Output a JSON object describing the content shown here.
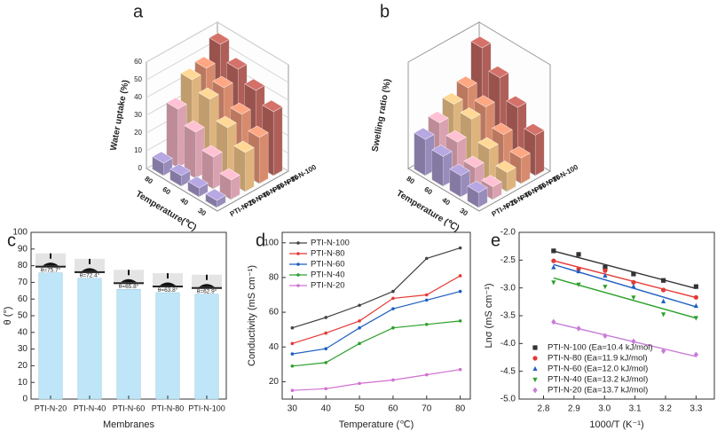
{
  "chart_data": [
    {
      "type": "bar3d",
      "panel": "a",
      "ylabel": "Water uptake (%)",
      "xlabel": "Temperature(℃)",
      "categories": [
        "30",
        "40",
        "60",
        "80"
      ],
      "ylim": [
        0,
        60
      ],
      "yticks": [
        0,
        10,
        20,
        30,
        40,
        50,
        60
      ],
      "grid": true,
      "series": [
        {
          "name": "PTI-N-20",
          "color": "#a99bd1",
          "values": [
            4,
            5,
            6,
            7
          ]
        },
        {
          "name": "PTI-N-40",
          "color": "#f2b3c3",
          "values": [
            11,
            18,
            26,
            33
          ]
        },
        {
          "name": "PTI-N-60",
          "color": "#f8c88a",
          "values": [
            22,
            30,
            40,
            45
          ]
        },
        {
          "name": "PTI-N-80",
          "color": "#f09a78",
          "values": [
            26,
            33,
            42,
            47
          ]
        },
        {
          "name": "PTI-N-100",
          "color": "#c46a62",
          "values": [
            36,
            42,
            48,
            56
          ]
        }
      ]
    },
    {
      "type": "bar3d",
      "panel": "b",
      "ylabel": "Swelling ratio (%)",
      "xlabel": "Temperature (℃)",
      "categories": [
        "30",
        "40",
        "60",
        "80"
      ],
      "ylim": [
        0,
        50
      ],
      "series": [
        {
          "name": "PTI-N-20",
          "color": "#a99bd1",
          "values": [
            7,
            10,
            14,
            17
          ]
        },
        {
          "name": "PTI-N-40",
          "color": "#f2b3c3",
          "values": [
            6,
            10,
            17,
            21
          ]
        },
        {
          "name": "PTI-N-60",
          "color": "#f8c88a",
          "values": [
            9,
            15,
            24,
            26
          ]
        },
        {
          "name": "PTI-N-80",
          "color": "#f09a78",
          "values": [
            12,
            18,
            26,
            30
          ]
        },
        {
          "name": "PTI-N-100",
          "color": "#c46a62",
          "values": [
            19,
            27,
            36,
            45
          ]
        }
      ]
    },
    {
      "type": "bar",
      "panel": "c",
      "ylabel": "θ (°)",
      "xlabel": "Membranes",
      "color": "#bfe6f8",
      "categories": [
        "PTI-N-20",
        "PTI-N-40",
        "PTI-N-60",
        "PTI-N-80",
        "PTI-N-100"
      ],
      "values": [
        75.7,
        72.4,
        65.8,
        63.8,
        62.9
      ],
      "value_labels": [
        "θ=75.7°",
        "θ=72.4°",
        "θ=65.8°",
        "θ=63.8°",
        "θ=62.9°"
      ],
      "ylim": [
        0,
        100
      ],
      "yticks": [
        0,
        10,
        20,
        30,
        40,
        50,
        60,
        70,
        80,
        90,
        100
      ]
    },
    {
      "type": "line",
      "panel": "d",
      "ylabel": "Conductivity (mS cm⁻¹)",
      "xlabel": "Temperature (℃)",
      "x": [
        30,
        40,
        50,
        60,
        70,
        80
      ],
      "xlim": [
        27,
        83
      ],
      "xticks": [
        30,
        40,
        50,
        60,
        70,
        80
      ],
      "ylim": [
        10,
        106
      ],
      "yticks": [
        20,
        40,
        60,
        80,
        100
      ],
      "legend": "upper left",
      "series": [
        {
          "name": "PTI-N-100",
          "color": "#444444",
          "values": [
            51,
            57,
            64,
            72,
            91,
            97
          ]
        },
        {
          "name": "PTI-N-80",
          "color": "#e53935",
          "values": [
            42,
            48,
            55,
            68,
            70,
            81
          ]
        },
        {
          "name": "PTI-N-60",
          "color": "#1f5fbf",
          "values": [
            36,
            39,
            51,
            62,
            67,
            72
          ]
        },
        {
          "name": "PTI-N-40",
          "color": "#2ca02c",
          "values": [
            29,
            31,
            42,
            51,
            53,
            55
          ]
        },
        {
          "name": "PTI-N-20",
          "color": "#d070d0",
          "values": [
            15,
            16,
            19,
            21,
            24,
            27
          ]
        }
      ]
    },
    {
      "type": "scatter",
      "panel": "e",
      "ylabel": "Lnσ (mS cm⁻¹)",
      "xlabel": "1000/T (K⁻¹)",
      "x": [
        2.833,
        2.915,
        3.002,
        3.095,
        3.193,
        3.3
      ],
      "xlim": [
        2.72,
        3.36
      ],
      "xticks": [
        2.8,
        2.9,
        {
          "value": 3,
          "label": "3.0"
        },
        3.1,
        3.2,
        3.3
      ],
      "ylim": [
        -5,
        -2
      ],
      "yticks": [
        {
          "value": -2,
          "label": "-2.0"
        },
        -2.5,
        {
          "value": -3,
          "label": "-3.0"
        },
        -3.5,
        {
          "value": -4,
          "label": "-4.0"
        },
        -4.5,
        {
          "value": -5,
          "label": "-5.0"
        }
      ],
      "legend": "lower left",
      "fit": true,
      "series": [
        {
          "name": "PTI-N-100  (Ea=10.4 kJ/mol)",
          "color": "#333333",
          "marker": "square",
          "values": [
            -2.333,
            -2.397,
            -2.631,
            -2.749,
            -2.865,
            -2.976
          ]
        },
        {
          "name": "PTI-N-80  (Ea=11.9 kJ/mol)",
          "color": "#e53935",
          "marker": "circle",
          "values": [
            -2.513,
            -2.659,
            -2.688,
            -2.9,
            -3.037,
            -3.17
          ]
        },
        {
          "name": "PTI-N-60  (Ea=12.0 kJ/mol)",
          "color": "#1f5fbf",
          "marker": "triangle-up",
          "values": [
            -2.631,
            -2.703,
            -2.781,
            -2.976,
            -3.244,
            -3.324
          ]
        },
        {
          "name": "PTI-N-40  (Ea=13.2 kJ/mol)",
          "color": "#2ca02c",
          "marker": "triangle-down",
          "values": [
            -2.9,
            -2.937,
            -2.976,
            -3.17,
            -3.474,
            -3.54
          ]
        },
        {
          "name": "PTI-N-20  (Ea=13.7 kJ/mol)",
          "color": "#c77dd6",
          "marker": "diamond",
          "values": [
            -3.612,
            -3.73,
            -3.863,
            -3.963,
            -4.135,
            -4.2
          ]
        }
      ]
    }
  ]
}
